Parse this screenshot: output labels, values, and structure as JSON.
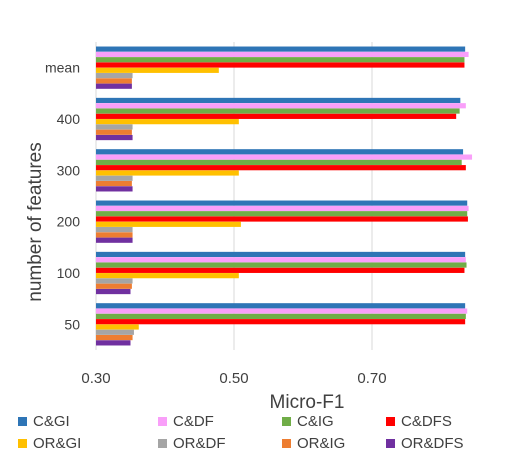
{
  "chart_data": {
    "type": "bar",
    "orientation": "horizontal",
    "title": "",
    "xlabel": "Micro-F1",
    "ylabel": "number of features",
    "xlim": [
      0.3,
      0.85
    ],
    "xticks": [
      "0.30",
      "0.50",
      "0.70"
    ],
    "categories": [
      "50",
      "100",
      "200",
      "300",
      "400",
      "mean"
    ],
    "grid": true,
    "legend_position": "bottom",
    "series": [
      {
        "name": "C&GI",
        "color": "#2e75b6",
        "values": [
          0.835,
          0.835,
          0.838,
          0.832,
          0.828,
          0.835
        ]
      },
      {
        "name": "C&DF",
        "color": "#f99ff9",
        "values": [
          0.838,
          0.836,
          0.84,
          0.845,
          0.836,
          0.84
        ]
      },
      {
        "name": "C&IG",
        "color": "#70ad47",
        "values": [
          0.836,
          0.837,
          0.838,
          0.83,
          0.827,
          0.834
        ]
      },
      {
        "name": "C&DFS",
        "color": "#ff0000",
        "values": [
          0.835,
          0.834,
          0.839,
          0.836,
          0.822,
          0.834
        ]
      },
      {
        "name": "OR&GI",
        "color": "#ffc000",
        "values": [
          0.362,
          0.507,
          0.51,
          0.507,
          0.507,
          0.478
        ]
      },
      {
        "name": "OR&DF",
        "color": "#a5a5a5",
        "values": [
          0.355,
          0.353,
          0.353,
          0.353,
          0.353,
          0.353
        ]
      },
      {
        "name": "OR&IG",
        "color": "#ed7d31",
        "values": [
          0.353,
          0.352,
          0.353,
          0.352,
          0.352,
          0.352
        ]
      },
      {
        "name": "OR&DFS",
        "color": "#7030a0",
        "values": [
          0.35,
          0.35,
          0.353,
          0.353,
          0.353,
          0.352
        ]
      }
    ]
  }
}
